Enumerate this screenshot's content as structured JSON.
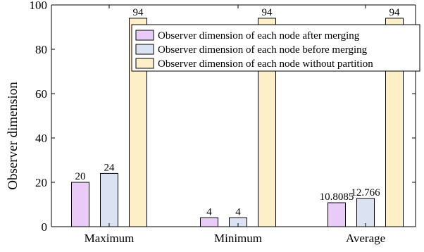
{
  "chart_data": {
    "type": "bar",
    "title": "",
    "xlabel": "",
    "ylabel": "Observer dimension",
    "ylim": [
      0,
      100
    ],
    "yticks": [
      0,
      20,
      40,
      60,
      80,
      100
    ],
    "categories": [
      "Maximum",
      "Minimum",
      "Average"
    ],
    "series": [
      {
        "name": "Observer dimension of each node after merging",
        "values": [
          20,
          4,
          10.8085
        ],
        "labels": [
          "20",
          "4",
          "10.8085"
        ],
        "color": "#e8ccf7"
      },
      {
        "name": "Observer dimension of each node before merging",
        "values": [
          24,
          4,
          12.766
        ],
        "labels": [
          "24",
          "4",
          "12.766"
        ],
        "color": "#dbe3f2"
      },
      {
        "name": "Observer dimension of each node without partition",
        "values": [
          94,
          94,
          94
        ],
        "labels": [
          "94",
          "94",
          "94"
        ],
        "color": "#fdf0c8"
      }
    ],
    "legend_position": "top-right",
    "grid": false
  }
}
